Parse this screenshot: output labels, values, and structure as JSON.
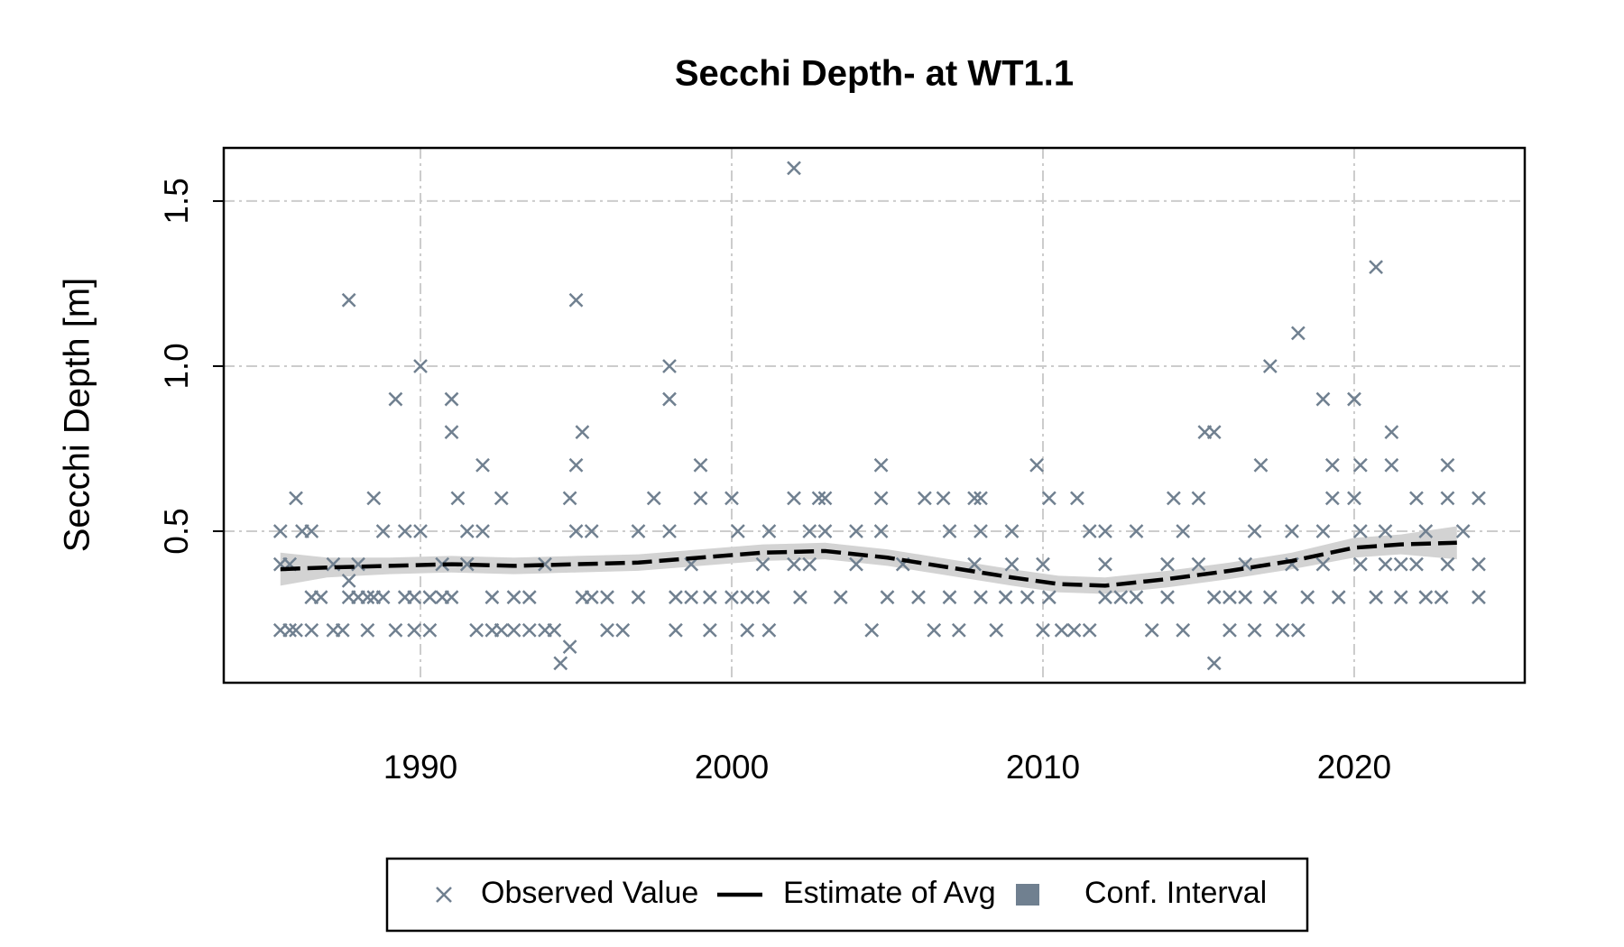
{
  "chart_data": {
    "type": "scatter",
    "title": "Secchi Depth- at WT1.1",
    "y_label": "Secchi Depth [m]",
    "xlim": [
      1983.68,
      2025.48
    ],
    "ylim": [
      0.041,
      1.661
    ],
    "xticks": [
      1990,
      2000,
      2010,
      2020
    ],
    "yticks": [
      0.5,
      {
        "value": 1,
        "label": "1.0"
      },
      1.5
    ],
    "grid": true,
    "legend": "bottom",
    "series": [
      {
        "name": "Observed Value",
        "type": "scatter",
        "color": "#708090",
        "x": [
          1985.5,
          1985.5,
          1985.5,
          1985.8,
          1985.8,
          1986.0,
          1986.0,
          1986.2,
          1986.5,
          1986.5,
          1986.5,
          1986.8,
          1987.2,
          1987.2,
          1987.5,
          1987.7,
          1987.7,
          1987.7,
          1988.0,
          1988.0,
          1988.3,
          1988.3,
          1988.5,
          1988.5,
          1988.8,
          1988.8,
          1989.2,
          1989.2,
          1989.5,
          1989.5,
          1989.8,
          1989.8,
          1990.0,
          1990.0,
          1990.3,
          1990.3,
          1990.7,
          1990.7,
          1991.0,
          1991.0,
          1991.0,
          1991.2,
          1991.5,
          1991.5,
          1991.8,
          1992.0,
          1992.0,
          1992.3,
          1992.3,
          1992.6,
          1992.6,
          1993.0,
          1993.0,
          1993.5,
          1993.5,
          1994.0,
          1994.0,
          1994.3,
          1994.5,
          1994.8,
          1994.8,
          1995.0,
          1995.0,
          1995.0,
          1995.2,
          1995.2,
          1995.5,
          1995.5,
          1996.0,
          1996.0,
          1996.5,
          1997.0,
          1997.0,
          1997.5,
          1998.0,
          1998.0,
          1998.0,
          1998.2,
          1998.2,
          1998.7,
          1998.7,
          1999.0,
          1999.0,
          1999.3,
          1999.3,
          2000.0,
          2000.0,
          2000.2,
          2000.5,
          2000.5,
          2001.0,
          2001.0,
          2001.2,
          2001.2,
          2002.0,
          2002.0,
          2002.0,
          2002.2,
          2002.5,
          2002.5,
          2002.8,
          2003.0,
          2003.0,
          2003.5,
          2004.0,
          2004.0,
          2004.5,
          2004.8,
          2004.8,
          2004.8,
          2005.0,
          2005.5,
          2006.0,
          2006.2,
          2006.5,
          2006.8,
          2007.0,
          2007.0,
          2007.3,
          2007.8,
          2007.8,
          2008.0,
          2008.0,
          2008.0,
          2008.5,
          2008.8,
          2009.0,
          2009.0,
          2009.5,
          2009.8,
          2010.0,
          2010.0,
          2010.2,
          2010.2,
          2010.6,
          2011.0,
          2011.1,
          2011.5,
          2011.5,
          2012.0,
          2012.0,
          2012.0,
          2012.5,
          2013.0,
          2013.0,
          2013.5,
          2014.0,
          2014.0,
          2014.2,
          2014.5,
          2014.5,
          2015.0,
          2015.0,
          2015.2,
          2015.5,
          2015.5,
          2015.5,
          2016.0,
          2016.0,
          2016.5,
          2016.5,
          2016.8,
          2016.8,
          2017.0,
          2017.3,
          2017.3,
          2017.7,
          2018.0,
          2018.0,
          2018.2,
          2018.2,
          2018.5,
          2019.0,
          2019.0,
          2019.0,
          2019.3,
          2019.3,
          2019.5,
          2020.0,
          2020.0,
          2020.2,
          2020.2,
          2020.2,
          2020.7,
          2020.7,
          2021.0,
          2021.0,
          2021.2,
          2021.2,
          2021.5,
          2021.5,
          2022.0,
          2022.0,
          2022.3,
          2022.3,
          2022.8,
          2023.0,
          2023.0,
          2023.0,
          2023.5,
          2024.0,
          2024.0,
          2024.0
        ],
        "values": [
          0.5,
          0.4,
          0.2,
          0.2,
          0.4,
          0.6,
          0.2,
          0.5,
          0.5,
          0.3,
          0.2,
          0.3,
          0.4,
          0.2,
          0.2,
          1.2,
          0.35,
          0.3,
          0.4,
          0.3,
          0.2,
          0.3,
          0.6,
          0.3,
          0.5,
          0.3,
          0.9,
          0.2,
          0.5,
          0.3,
          0.3,
          0.2,
          1.0,
          0.5,
          0.2,
          0.3,
          0.4,
          0.3,
          0.9,
          0.8,
          0.3,
          0.6,
          0.5,
          0.4,
          0.2,
          0.7,
          0.5,
          0.3,
          0.2,
          0.6,
          0.2,
          0.3,
          0.2,
          0.3,
          0.2,
          0.4,
          0.2,
          0.2,
          0.1,
          0.15,
          0.6,
          1.2,
          0.7,
          0.5,
          0.8,
          0.3,
          0.5,
          0.3,
          0.3,
          0.2,
          0.2,
          0.5,
          0.3,
          0.6,
          1.0,
          0.9,
          0.5,
          0.3,
          0.2,
          0.4,
          0.3,
          0.7,
          0.6,
          0.2,
          0.3,
          0.6,
          0.3,
          0.5,
          0.2,
          0.3,
          0.4,
          0.3,
          0.5,
          0.2,
          0.6,
          0.4,
          1.6,
          0.3,
          0.5,
          0.4,
          0.6,
          0.6,
          0.5,
          0.3,
          0.5,
          0.4,
          0.2,
          0.7,
          0.6,
          0.5,
          0.3,
          0.4,
          0.3,
          0.6,
          0.2,
          0.6,
          0.5,
          0.3,
          0.2,
          0.6,
          0.4,
          0.6,
          0.5,
          0.3,
          0.2,
          0.3,
          0.5,
          0.4,
          0.3,
          0.7,
          0.4,
          0.2,
          0.6,
          0.3,
          0.2,
          0.2,
          0.6,
          0.5,
          0.2,
          0.5,
          0.4,
          0.3,
          0.3,
          0.5,
          0.3,
          0.2,
          0.4,
          0.3,
          0.6,
          0.5,
          0.2,
          0.6,
          0.4,
          0.8,
          0.8,
          0.3,
          0.1,
          0.3,
          0.2,
          0.4,
          0.3,
          0.5,
          0.2,
          0.7,
          1.0,
          0.3,
          0.2,
          0.5,
          0.4,
          1.1,
          0.2,
          0.3,
          0.9,
          0.5,
          0.4,
          0.7,
          0.6,
          0.3,
          0.9,
          0.6,
          0.5,
          0.7,
          0.4,
          1.3,
          0.3,
          0.5,
          0.4,
          0.8,
          0.7,
          0.4,
          0.3,
          0.6,
          0.4,
          0.5,
          0.3,
          0.3,
          0.7,
          0.6,
          0.4,
          0.5,
          0.6,
          0.4,
          0.3
        ]
      },
      {
        "name": "Estimate of Avg",
        "type": "line",
        "color": "#000000",
        "x": [
          1985.5,
          1987,
          1989,
          1991,
          1993,
          1995,
          1997,
          1999,
          2001,
          2003,
          2005,
          2007,
          2009,
          2010.5,
          2012,
          2014,
          2016,
          2018,
          2020,
          2021.5,
          2023.3
        ],
        "values": [
          0.385,
          0.39,
          0.395,
          0.4,
          0.395,
          0.4,
          0.405,
          0.42,
          0.435,
          0.44,
          0.42,
          0.39,
          0.36,
          0.34,
          0.335,
          0.355,
          0.38,
          0.41,
          0.45,
          0.46,
          0.465
        ]
      },
      {
        "name": "Conf. Interval",
        "type": "band",
        "color": "#d3d3d3",
        "legend_color": "#708090",
        "x": [
          1985.5,
          1987,
          1989,
          1991,
          1993,
          1995,
          1997,
          1999,
          2001,
          2003,
          2005,
          2007,
          2009,
          2010.5,
          2012,
          2014,
          2016,
          2018,
          2020,
          2021.5,
          2023.3
        ],
        "lower": [
          0.335,
          0.36,
          0.37,
          0.375,
          0.37,
          0.375,
          0.38,
          0.395,
          0.41,
          0.415,
          0.395,
          0.365,
          0.335,
          0.315,
          0.31,
          0.33,
          0.355,
          0.385,
          0.42,
          0.43,
          0.415
        ],
        "upper": [
          0.435,
          0.42,
          0.42,
          0.425,
          0.42,
          0.425,
          0.43,
          0.445,
          0.46,
          0.465,
          0.445,
          0.415,
          0.385,
          0.365,
          0.36,
          0.38,
          0.405,
          0.435,
          0.48,
          0.49,
          0.515
        ]
      }
    ]
  }
}
